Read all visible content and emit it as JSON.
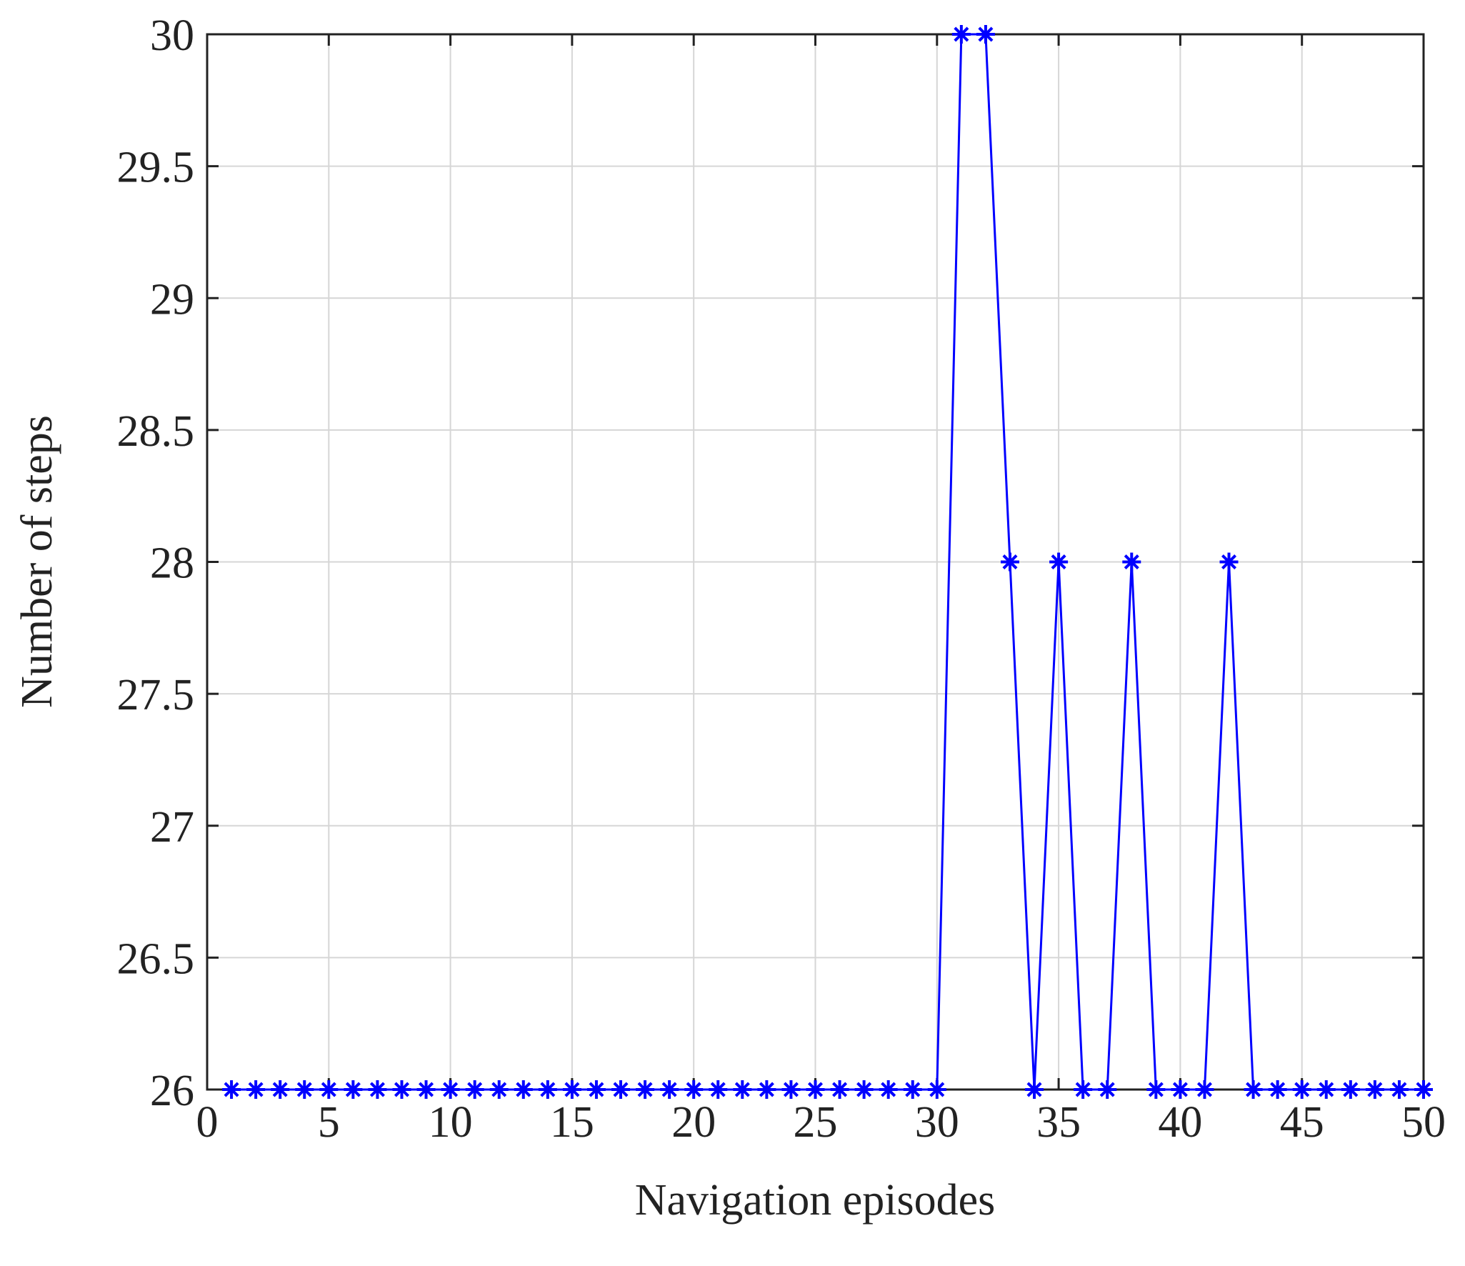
{
  "chart_data": {
    "type": "line",
    "x_label": "Navigation episodes",
    "y_label": "Number of steps",
    "x": [
      1,
      2,
      3,
      4,
      5,
      6,
      7,
      8,
      9,
      10,
      11,
      12,
      13,
      14,
      15,
      16,
      17,
      18,
      19,
      20,
      21,
      22,
      23,
      24,
      25,
      26,
      27,
      28,
      29,
      30,
      31,
      32,
      33,
      34,
      35,
      36,
      37,
      38,
      39,
      40,
      41,
      42,
      43,
      44,
      45,
      46,
      47,
      48,
      49,
      50
    ],
    "series": [
      {
        "name": "Number of steps",
        "color": "#0000ff",
        "values": [
          26,
          26,
          26,
          26,
          26,
          26,
          26,
          26,
          26,
          26,
          26,
          26,
          26,
          26,
          26,
          26,
          26,
          26,
          26,
          26,
          26,
          26,
          26,
          26,
          26,
          26,
          26,
          26,
          26,
          26,
          30,
          30,
          28,
          26,
          28,
          26,
          26,
          28,
          26,
          26,
          26,
          28,
          26,
          26,
          26,
          26,
          26,
          26,
          26,
          26
        ]
      }
    ],
    "xlim": [
      0,
      50
    ],
    "xticks": [
      0,
      5,
      10,
      15,
      20,
      25,
      30,
      35,
      40,
      45,
      50
    ],
    "ylim": [
      26,
      30
    ],
    "yticks": [
      26,
      26.5,
      27,
      27.5,
      28,
      28.5,
      29,
      29.5,
      30
    ],
    "grid": true,
    "marker": "asterisk"
  }
}
